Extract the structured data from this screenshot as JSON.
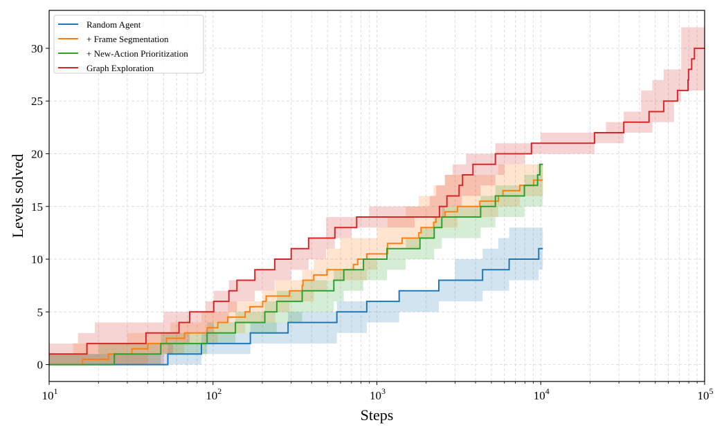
{
  "chart_data": {
    "type": "line",
    "title": "",
    "xlabel": "Steps",
    "ylabel": "Levels solved",
    "xscale": "log",
    "xlim": [
      10,
      100000
    ],
    "ylim": [
      -1.6,
      33.6
    ],
    "xticks": [
      {
        "value": 10,
        "base": "10",
        "exp": "1"
      },
      {
        "value": 100,
        "base": "10",
        "exp": "2"
      },
      {
        "value": 1000,
        "base": "10",
        "exp": "3"
      },
      {
        "value": 10000,
        "base": "10",
        "exp": "4"
      },
      {
        "value": 100000,
        "base": "10",
        "exp": "5"
      }
    ],
    "yticks": [
      0,
      5,
      10,
      15,
      20,
      25,
      30
    ],
    "ytick_labels": [
      "0",
      "5",
      "10",
      "15",
      "20",
      "25",
      "30"
    ],
    "grid": true,
    "legend_position": "top-left",
    "series": [
      {
        "name": "Random Agent",
        "color": "#1f77b4",
        "steps": [
          [
            10,
            0
          ],
          [
            53,
            1
          ],
          [
            85,
            2
          ],
          [
            169,
            3
          ],
          [
            287,
            4
          ],
          [
            570,
            5
          ],
          [
            868,
            6
          ],
          [
            1368,
            7
          ],
          [
            2388,
            8
          ],
          [
            4416,
            9
          ],
          [
            6414,
            10
          ],
          [
            9721,
            11
          ]
        ],
        "end": 10300,
        "band": [
          [
            10,
            0,
            1
          ],
          [
            30,
            0,
            1
          ],
          [
            53,
            0,
            2
          ],
          [
            85,
            1,
            3
          ],
          [
            120,
            1,
            3
          ],
          [
            169,
            2,
            4
          ],
          [
            287,
            2,
            5
          ],
          [
            570,
            3,
            6
          ],
          [
            868,
            4,
            6
          ],
          [
            1368,
            5,
            7
          ],
          [
            2388,
            6,
            8
          ],
          [
            3000,
            6,
            10
          ],
          [
            4416,
            7,
            11
          ],
          [
            5500,
            7,
            12
          ],
          [
            6414,
            8,
            13
          ],
          [
            9721,
            9,
            13
          ]
        ]
      },
      {
        "name": "+ Frame Segmentation",
        "color": "#ff7f0e",
        "steps": [
          [
            10,
            0
          ],
          [
            16,
            0.5
          ],
          [
            23,
            1
          ],
          [
            32,
            1.5
          ],
          [
            40,
            2
          ],
          [
            52,
            2.5
          ],
          [
            67,
            3
          ],
          [
            92,
            3.5
          ],
          [
            107,
            4
          ],
          [
            123,
            4.5
          ],
          [
            157,
            5
          ],
          [
            168,
            5.5
          ],
          [
            201,
            6
          ],
          [
            211,
            6.5
          ],
          [
            293,
            7
          ],
          [
            350,
            7.5
          ],
          [
            354,
            8
          ],
          [
            412,
            8.5
          ],
          [
            496,
            9
          ],
          [
            719,
            9.5
          ],
          [
            763,
            10
          ],
          [
            868,
            10.5
          ],
          [
            1161,
            11.5
          ],
          [
            1426,
            12
          ],
          [
            1803,
            12.5
          ],
          [
            1862,
            13
          ],
          [
            2223,
            13.5
          ],
          [
            2295,
            14
          ],
          [
            2612,
            14.5
          ],
          [
            3103,
            15
          ],
          [
            4252,
            15.5
          ],
          [
            5511,
            16
          ],
          [
            5875,
            16.5
          ],
          [
            7450,
            17
          ],
          [
            9053,
            17.5
          ]
        ],
        "end": 10300,
        "band": [
          [
            10,
            0,
            1
          ],
          [
            14,
            0,
            2
          ],
          [
            30,
            0,
            3
          ],
          [
            40,
            1,
            3
          ],
          [
            55,
            1,
            4
          ],
          [
            67,
            2,
            4
          ],
          [
            85,
            2,
            5
          ],
          [
            107,
            3,
            5
          ],
          [
            123,
            3,
            6
          ],
          [
            157,
            4,
            6
          ],
          [
            201,
            4,
            7
          ],
          [
            240,
            5,
            8
          ],
          [
            293,
            6,
            8
          ],
          [
            350,
            6,
            9
          ],
          [
            412,
            7,
            10
          ],
          [
            496,
            8,
            11
          ],
          [
            600,
            8,
            12
          ],
          [
            870,
            9,
            12
          ],
          [
            1000,
            10,
            13
          ],
          [
            1161,
            11,
            14
          ],
          [
            1500,
            11,
            15
          ],
          [
            1800,
            12,
            16
          ],
          [
            2220,
            13,
            17
          ],
          [
            2600,
            13,
            18
          ],
          [
            3100,
            14,
            18
          ],
          [
            5500,
            15,
            19
          ],
          [
            7450,
            16,
            19
          ]
        ]
      },
      {
        "name": "+ New-Action Prioritization",
        "color": "#2ca02c",
        "steps": [
          [
            10,
            0
          ],
          [
            25,
            1
          ],
          [
            48,
            2
          ],
          [
            92,
            3
          ],
          [
            137,
            4
          ],
          [
            207,
            5
          ],
          [
            245,
            6
          ],
          [
            350,
            7
          ],
          [
            546,
            8
          ],
          [
            628,
            9
          ],
          [
            828,
            10
          ],
          [
            1151,
            11
          ],
          [
            1832,
            12
          ],
          [
            2238,
            13
          ],
          [
            2491,
            14
          ],
          [
            4295,
            15
          ],
          [
            5285,
            16
          ],
          [
            7945,
            17
          ],
          [
            9566,
            18
          ],
          [
            9882,
            19
          ]
        ],
        "end": 10300,
        "band": [
          [
            10,
            0,
            1
          ],
          [
            20,
            0,
            2
          ],
          [
            48,
            1,
            3
          ],
          [
            92,
            2,
            4
          ],
          [
            137,
            3,
            5
          ],
          [
            207,
            3,
            6
          ],
          [
            245,
            4,
            7
          ],
          [
            350,
            5,
            8
          ],
          [
            546,
            6,
            9
          ],
          [
            628,
            7,
            9
          ],
          [
            828,
            8,
            10
          ],
          [
            1151,
            9,
            11
          ],
          [
            1500,
            10,
            12
          ],
          [
            1832,
            10,
            13
          ],
          [
            2238,
            11,
            14
          ],
          [
            2491,
            12,
            15
          ],
          [
            4295,
            13,
            16
          ],
          [
            5285,
            14,
            17
          ],
          [
            7945,
            15,
            18
          ],
          [
            9566,
            15,
            19
          ]
        ]
      },
      {
        "name": "Graph Exploration",
        "color": "#d62728",
        "steps": [
          [
            10,
            1
          ],
          [
            17,
            2
          ],
          [
            39,
            3
          ],
          [
            62,
            4
          ],
          [
            72,
            5
          ],
          [
            101,
            6
          ],
          [
            125,
            7
          ],
          [
            140,
            8
          ],
          [
            180,
            9
          ],
          [
            238,
            10
          ],
          [
            300,
            11
          ],
          [
            383,
            12
          ],
          [
            554,
            13
          ],
          [
            753,
            14
          ],
          [
            2410,
            15
          ],
          [
            2675,
            16
          ],
          [
            3174,
            17
          ],
          [
            3334,
            18
          ],
          [
            3857,
            19
          ],
          [
            5285,
            20
          ],
          [
            8770,
            21
          ],
          [
            21280,
            22
          ],
          [
            32100,
            23
          ],
          [
            45800,
            24
          ],
          [
            56300,
            25
          ],
          [
            68400,
            26
          ],
          [
            79200,
            27
          ],
          [
            79800,
            28
          ],
          [
            83400,
            29
          ],
          [
            86700,
            30
          ]
        ],
        "end": 100000,
        "band": [
          [
            10,
            0,
            2
          ],
          [
            15,
            0,
            3
          ],
          [
            19,
            0,
            4
          ],
          [
            50,
            1,
            5
          ],
          [
            57,
            2,
            5
          ],
          [
            72,
            3,
            5
          ],
          [
            90,
            3,
            6
          ],
          [
            101,
            4,
            7
          ],
          [
            125,
            5,
            8
          ],
          [
            140,
            6,
            8
          ],
          [
            180,
            7,
            9
          ],
          [
            238,
            8,
            10
          ],
          [
            300,
            9,
            11
          ],
          [
            383,
            10,
            12
          ],
          [
            490,
            11,
            14
          ],
          [
            554,
            12,
            14
          ],
          [
            700,
            13,
            14
          ],
          [
            900,
            13,
            15
          ],
          [
            1700,
            14,
            15
          ],
          [
            2100,
            14,
            16
          ],
          [
            2300,
            14,
            17
          ],
          [
            2600,
            15,
            18
          ],
          [
            2900,
            15,
            19
          ],
          [
            3300,
            16,
            19
          ],
          [
            3500,
            16,
            20
          ],
          [
            4300,
            17,
            20
          ],
          [
            5285,
            18,
            21
          ],
          [
            6000,
            19,
            21
          ],
          [
            8000,
            20,
            21
          ],
          [
            10000,
            20,
            22
          ],
          [
            21280,
            21,
            22
          ],
          [
            25000,
            21,
            23
          ],
          [
            32100,
            22,
            24
          ],
          [
            41000,
            22,
            26
          ],
          [
            48000,
            23,
            27
          ],
          [
            56300,
            23,
            28
          ],
          [
            65000,
            25,
            28
          ],
          [
            72000,
            26,
            32
          ]
        ]
      }
    ]
  }
}
